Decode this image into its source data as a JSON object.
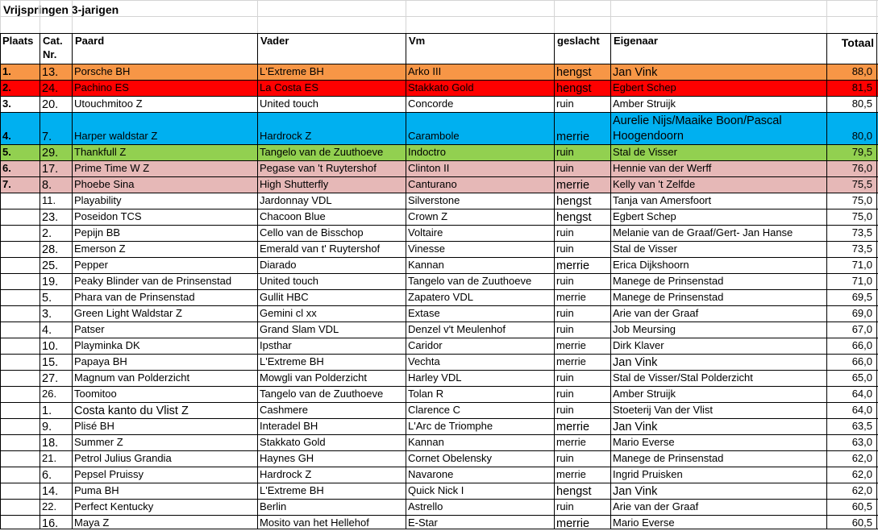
{
  "title": "Vrijspringen 3-jarigen",
  "headers": {
    "plaats": "Plaats",
    "cat": "Cat.",
    "nr": "Nr.",
    "paard": "Paard",
    "vader": "Vader",
    "vm": "Vm",
    "geslacht": "geslacht",
    "eigenaar": "Eigenaar",
    "totaal": "Totaal"
  },
  "colors": {
    "orange": "#f79646",
    "red": "#ff0000",
    "blue": "#00b0f0",
    "green": "#92d050",
    "pink": "#e6b8b7",
    "grid_light": "#d4d4d4",
    "grid_dark": "#000000"
  },
  "rows": [
    {
      "plaats": "1.",
      "cat": "13.",
      "paard": "Porsche BH",
      "vader": "L'Extreme BH",
      "vm": "Arko III",
      "geslacht": "hengst",
      "eigenaar": "Jan Vink",
      "totaal": "88,0",
      "fill": "orange"
    },
    {
      "plaats": "2.",
      "cat": "24.",
      "paard": "Pachino ES",
      "vader": "La Costa ES",
      "vm": "Stakkato Gold",
      "geslacht": "hengst",
      "eigenaar": "Egbert Schep",
      "totaal": "81,5",
      "fill": "red"
    },
    {
      "plaats": "3.",
      "cat": "20.",
      "paard": "Utouchmitoo Z",
      "vader": "United touch",
      "vm": "Concorde",
      "geslacht": "ruin",
      "eigenaar": "Amber Struijk",
      "totaal": "80,5",
      "fill": ""
    },
    {
      "plaats": "4.",
      "cat": "7.",
      "paard": "Harper waldstar Z",
      "vader": "Hardrock Z",
      "vm": "Carambole",
      "geslacht": "merrie",
      "eigenaar": "Aurelie Nijs/Maaike Boon/Pascal",
      "eigenaar2": "Hoogendoorn",
      "totaal": "80,0",
      "fill": "blue"
    },
    {
      "plaats": "5.",
      "cat": "29.",
      "paard": "Thankfull Z",
      "vader": "Tangelo van de Zuuthoeve",
      "vm": "Indoctro",
      "geslacht": "ruin",
      "eigenaar": "Stal de Visser",
      "totaal": "79,5",
      "fill": "green"
    },
    {
      "plaats": "6.",
      "cat": "17.",
      "paard": "Prime Time W Z",
      "vader": "Pegase van 't Ruytershof",
      "vm": "Clinton II",
      "geslacht": "ruin",
      "eigenaar": "Hennie van der Werff",
      "totaal": "76,0",
      "fill": "pink"
    },
    {
      "plaats": "7.",
      "cat": "8.",
      "paard": "Phoebe Sina",
      "vader": "High Shutterfly",
      "vm": "Canturano",
      "geslacht": "merrie",
      "eigenaar": "Kelly van 't Zelfde",
      "totaal": "75,5",
      "fill": "pink"
    },
    {
      "plaats": "",
      "cat": "11.",
      "paard": "Playability",
      "vader": "Jardonnay VDL",
      "vm": "Silverstone",
      "geslacht": "hengst",
      "eigenaar": "Tanja van Amersfoort",
      "totaal": "75,0",
      "fill": ""
    },
    {
      "plaats": "",
      "cat": "23.",
      "paard": "Poseidon TCS",
      "vader": "Chacoon Blue",
      "vm": "Crown Z",
      "geslacht": "hengst",
      "eigenaar": "Egbert Schep",
      "totaal": "75,0",
      "fill": ""
    },
    {
      "plaats": "",
      "cat": "2.",
      "paard": "Pepijn BB",
      "vader": "Cello van de Bisschop",
      "vm": "Voltaire",
      "geslacht": "ruin",
      "eigenaar": "Melanie van de Graaf/Gert- Jan Hanse",
      "totaal": "73,5",
      "fill": ""
    },
    {
      "plaats": "",
      "cat": "28.",
      "paard": "Emerson Z",
      "vader": "Emerald van t' Ruytershof",
      "vm": "Vinesse",
      "geslacht": "ruin",
      "eigenaar": "Stal de Visser",
      "totaal": "73,5",
      "fill": ""
    },
    {
      "plaats": "",
      "cat": "25.",
      "paard": "Pepper",
      "vader": "Diarado",
      "vm": "Kannan",
      "geslacht": "merrie",
      "eigenaar": "Erica Dijkshoorn",
      "totaal": "71,0",
      "fill": ""
    },
    {
      "plaats": "",
      "cat": "19.",
      "paard": "Peaky Blinder van de Prinsenstad",
      "vader": "United touch",
      "vm": "Tangelo van de Zuuthoeve",
      "geslacht": "ruin",
      "eigenaar": "Manege de Prinsenstad",
      "totaal": "71,0",
      "fill": ""
    },
    {
      "plaats": "",
      "cat": "5.",
      "paard": "Phara van de Prinsenstad",
      "vader": "Gullit HBC",
      "vm": "Zapatero VDL",
      "geslacht": "merrie",
      "eigenaar": "Manege de Prinsenstad",
      "totaal": "69,5",
      "fill": ""
    },
    {
      "plaats": "",
      "cat": "3.",
      "paard": "Green Light Waldstar Z",
      "vader": "Gemini cl xx",
      "vm": "Extase",
      "geslacht": "ruin",
      "eigenaar": "Arie van der Graaf",
      "totaal": "69,0",
      "fill": ""
    },
    {
      "plaats": "",
      "cat": "4.",
      "paard": "Patser",
      "vader": "Grand Slam VDL",
      "vm": "Denzel v't Meulenhof",
      "geslacht": "ruin",
      "eigenaar": "Job Meursing",
      "totaal": "67,0",
      "fill": ""
    },
    {
      "plaats": "",
      "cat": "10.",
      "paard": "Playminka DK",
      "vader": "Ipsthar",
      "vm": "Caridor",
      "geslacht": "merrie",
      "eigenaar": "Dirk Klaver",
      "totaal": "66,0",
      "fill": ""
    },
    {
      "plaats": "",
      "cat": "15.",
      "paard": "Papaya BH",
      "vader": "L'Extreme BH",
      "vm": "Vechta",
      "geslacht": "merrie",
      "eigenaar": "Jan Vink",
      "totaal": "66,0",
      "fill": ""
    },
    {
      "plaats": "",
      "cat": "27.",
      "paard": "Magnum van Polderzicht",
      "vader": "Mowgli van Polderzicht",
      "vm": "Harley VDL",
      "geslacht": "ruin",
      "eigenaar": "Stal de Visser/Stal Polderzicht",
      "totaal": "65,0",
      "fill": ""
    },
    {
      "plaats": "",
      "cat": "26.",
      "paard": "Toomitoo",
      "vader": "Tangelo van de Zuuthoeve",
      "vm": "Tolan R",
      "geslacht": "ruin",
      "eigenaar": "Amber Struijk",
      "totaal": "64,0",
      "fill": ""
    },
    {
      "plaats": "",
      "cat": "1.",
      "paard": "Costa kanto du Vlist Z",
      "vader": "Cashmere",
      "vm": "Clarence C",
      "geslacht": "ruin",
      "eigenaar": "Stoeterij Van der Vlist",
      "totaal": "64,0",
      "fill": ""
    },
    {
      "plaats": "",
      "cat": "9.",
      "paard": "Plisé BH",
      "vader": "Interadel BH",
      "vm": "L'Arc de Triomphe",
      "geslacht": "merrie",
      "eigenaar": "Jan Vink",
      "totaal": "63,5",
      "fill": ""
    },
    {
      "plaats": "",
      "cat": "18.",
      "paard": "Summer Z",
      "vader": "Stakkato Gold",
      "vm": "Kannan",
      "geslacht": "merrie",
      "eigenaar": "Mario Everse",
      "totaal": "63,0",
      "fill": ""
    },
    {
      "plaats": "",
      "cat": "21.",
      "paard": "Petrol Julius Grandia",
      "vader": "Haynes GH",
      "vm": "Cornet Obelensky",
      "geslacht": "ruin",
      "eigenaar": "Manege de Prinsenstad",
      "totaal": "62,0",
      "fill": ""
    },
    {
      "plaats": "",
      "cat": "6.",
      "paard": "Pepsel Pruissy",
      "vader": "Hardrock Z",
      "vm": "Navarone",
      "geslacht": "merrie",
      "eigenaar": "Ingrid Pruisken",
      "totaal": "62,0",
      "fill": ""
    },
    {
      "plaats": "",
      "cat": "14.",
      "paard": "Puma BH",
      "vader": "L'Extreme BH",
      "vm": "Quick Nick I",
      "geslacht": "hengst",
      "eigenaar": "Jan Vink",
      "totaal": "62,0",
      "fill": ""
    },
    {
      "plaats": "",
      "cat": "22.",
      "paard": "Perfect Kentucky",
      "vader": "Berlin",
      "vm": "Astrello",
      "geslacht": "ruin",
      "eigenaar": "Arie van der Graaf",
      "totaal": "60,5",
      "fill": ""
    },
    {
      "plaats": "",
      "cat": "16.",
      "paard": "Maya Z",
      "vader": "Mosito van het Hellehof",
      "vm": "E-Star",
      "geslacht": "merrie",
      "eigenaar": "Mario Everse",
      "totaal": "60,5",
      "fill": ""
    }
  ]
}
